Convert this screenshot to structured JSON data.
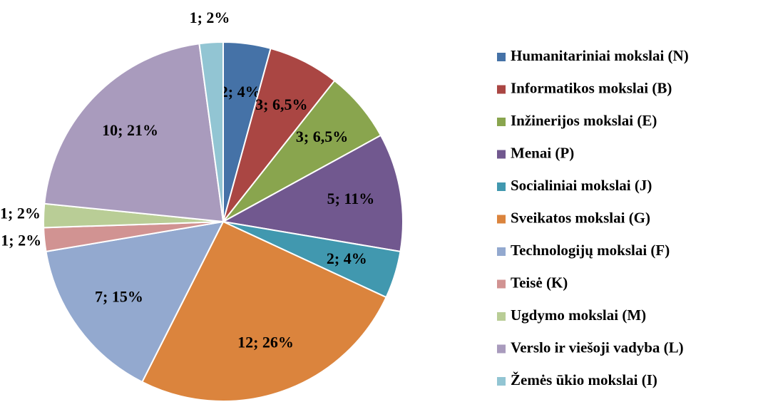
{
  "chart_data": {
    "type": "pie",
    "categories": [
      "Humanitariniai mokslai (N)",
      "Informatikos mokslai (B)",
      "Inžinerijos mokslai (E)",
      "Menai (P)",
      "Socialiniai mokslai (J)",
      "Sveikatos mokslai (G)",
      "Technologijų mokslai (F)",
      "Teisė (K)",
      "Ugdymo mokslai (M)",
      "Verslo ir viešoji vadyba (L)",
      "Žemės ūkio mokslai (I)"
    ],
    "values": [
      2,
      3,
      3,
      5,
      2,
      12,
      7,
      1,
      1,
      10,
      1
    ],
    "value_labels": [
      "2; 4%",
      "3; 6,5%",
      "3; 6,5%",
      "5; 11%",
      "2; 4%",
      "12; 26%",
      "7; 15%",
      "1; 2%",
      "1; 2%",
      "10; 21%",
      "1; 2%"
    ],
    "colors": [
      "#4572a7",
      "#aa4643",
      "#89a54e",
      "#71588f",
      "#4198af",
      "#db843d",
      "#93a9cf",
      "#d19392",
      "#b9cd96",
      "#a99bbd",
      "#92c5d3"
    ],
    "legend": "right"
  }
}
